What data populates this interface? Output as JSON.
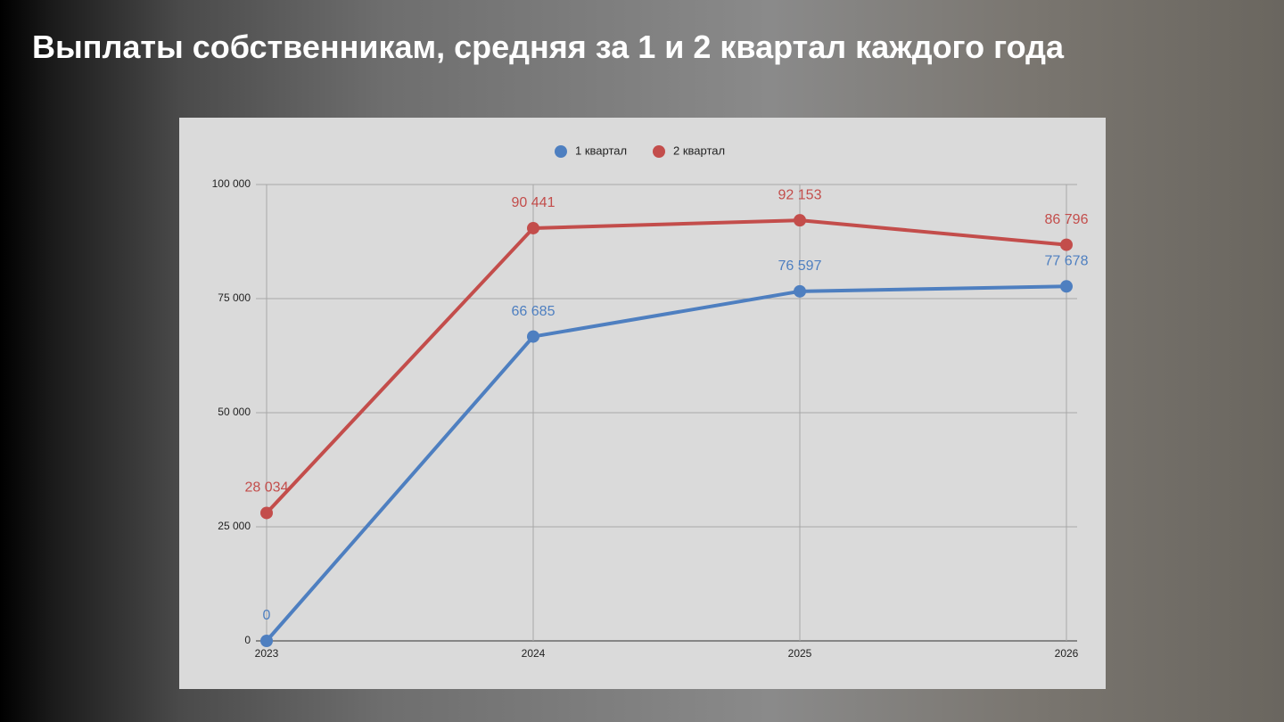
{
  "title": "Выплаты собственникам, средняя за 1 и 2 квартал каждого года",
  "chart_data": {
    "type": "line",
    "categories": [
      "2023",
      "2024",
      "2025",
      "2026"
    ],
    "series": [
      {
        "name": "1 квартал",
        "color": "#4e7fc0",
        "values": [
          0,
          66685,
          76597,
          77678
        ],
        "value_labels": [
          "0",
          "66 685",
          "76 597",
          "77 678"
        ]
      },
      {
        "name": "2 квартал",
        "color": "#c34d4b",
        "values": [
          28034,
          90441,
          92153,
          86796
        ],
        "value_labels": [
          "28 034",
          "90 441",
          "92 153",
          "86 796"
        ]
      }
    ],
    "ylim": [
      0,
      100000
    ],
    "yticks": [
      0,
      {
        "value": 25000,
        "label": "25 000"
      },
      {
        "value": 50000,
        "label": "50 000"
      },
      {
        "value": 75000,
        "label": "75 000"
      },
      {
        "value": 100000,
        "label": "100 000"
      }
    ],
    "grid": true,
    "legend": "top"
  }
}
